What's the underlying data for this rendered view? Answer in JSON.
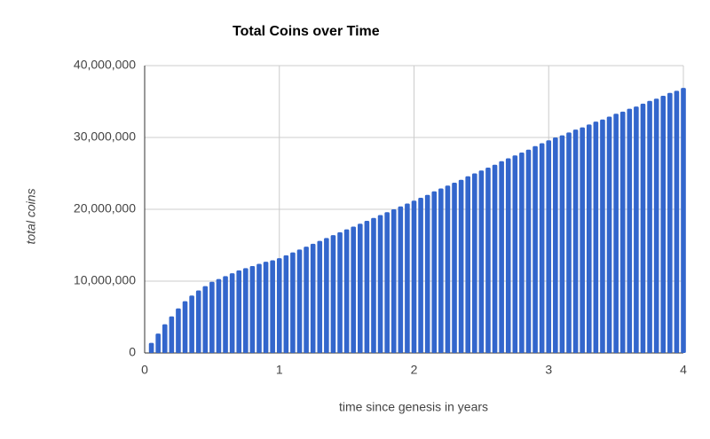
{
  "chart_data": {
    "type": "bar",
    "title": "Total Coins over Time",
    "xlabel": "time since genesis in years",
    "ylabel": "total coins",
    "color": "#3366cc",
    "grid": true,
    "x": [
      0.05,
      0.1,
      0.15,
      0.2,
      0.25,
      0.3,
      0.35,
      0.4,
      0.45,
      0.5,
      0.55,
      0.6,
      0.65,
      0.7,
      0.75,
      0.8,
      0.85,
      0.9,
      0.95,
      1.0,
      1.05,
      1.1,
      1.15,
      1.2,
      1.25,
      1.3,
      1.35,
      1.4,
      1.45,
      1.5,
      1.55,
      1.6,
      1.65,
      1.7,
      1.75,
      1.8,
      1.85,
      1.9,
      1.95,
      2.0,
      2.05,
      2.1,
      2.15,
      2.2,
      2.25,
      2.3,
      2.35,
      2.4,
      2.45,
      2.5,
      2.55,
      2.6,
      2.65,
      2.7,
      2.75,
      2.8,
      2.85,
      2.9,
      2.95,
      3.0,
      3.05,
      3.1,
      3.15,
      3.2,
      3.25,
      3.3,
      3.35,
      3.4,
      3.45,
      3.5,
      3.55,
      3.6,
      3.65,
      3.7,
      3.75,
      3.8,
      3.85,
      3.9,
      3.95,
      4.0
    ],
    "values": [
      1400000,
      2700000,
      4000000,
      5100000,
      6200000,
      7200000,
      8000000,
      8700000,
      9300000,
      9900000,
      10300000,
      10700000,
      11100000,
      11500000,
      11800000,
      12100000,
      12400000,
      12700000,
      12900000,
      13200000,
      13600000,
      14000000,
      14400000,
      14800000,
      15200000,
      15600000,
      16000000,
      16400000,
      16800000,
      17200000,
      17600000,
      18000000,
      18400000,
      18800000,
      19200000,
      19600000,
      20000000,
      20400000,
      20800000,
      21200000,
      21600000,
      22000000,
      22500000,
      22900000,
      23300000,
      23700000,
      24100000,
      24600000,
      25000000,
      25400000,
      25800000,
      26200000,
      26700000,
      27100000,
      27500000,
      27900000,
      28300000,
      28800000,
      29200000,
      29600000,
      30000000,
      30300000,
      30700000,
      31100000,
      31400000,
      31800000,
      32200000,
      32500000,
      32900000,
      33300000,
      33600000,
      34000000,
      34300000,
      34700000,
      35100000,
      35400000,
      35800000,
      36200000,
      36500000,
      36900000
    ],
    "xlim": [
      0,
      4
    ],
    "xticks": [
      0,
      1,
      2,
      3,
      4
    ],
    "ylim": [
      0,
      40000000
    ],
    "yticks": [
      0,
      {
        "value": 10000000,
        "label": "10,000,000"
      },
      {
        "value": 20000000,
        "label": "20,000,000"
      },
      {
        "value": 30000000,
        "label": "30,000,000"
      },
      {
        "value": 40000000,
        "label": "40,000,000"
      }
    ]
  }
}
